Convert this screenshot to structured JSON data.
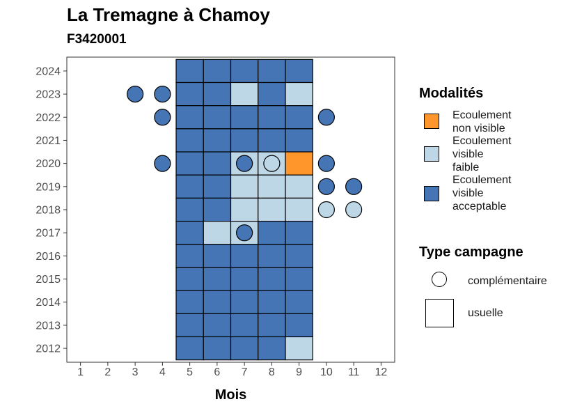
{
  "title": "La Tremagne à Chamoy",
  "subtitle": "F3420001",
  "colors": {
    "Ecoulement non visible": "#FE962B",
    "Ecoulement visible faible": "#BDD7E7",
    "Ecoulement visible acceptable": "#4575B4"
  },
  "legend": {
    "modalites_title": "Modalités",
    "modalites": [
      {
        "label": "Ecoulement\nnon visible",
        "key": "Ecoulement non visible"
      },
      {
        "label": "Ecoulement\nvisible\nfaible",
        "key": "Ecoulement visible faible"
      },
      {
        "label": "Ecoulement\nvisible\nacceptable",
        "key": "Ecoulement visible acceptable"
      }
    ],
    "type_title": "Type campagne",
    "types": [
      {
        "label": "complémentaire",
        "shape": "circle"
      },
      {
        "label": "usuelle",
        "shape": "square"
      }
    ]
  },
  "chart_data": {
    "type": "heatmap",
    "xlabel": "Mois",
    "ylabel": "",
    "x_ticks": [
      1,
      2,
      3,
      4,
      5,
      6,
      7,
      8,
      9,
      10,
      11,
      12
    ],
    "y_ticks": [
      2012,
      2013,
      2014,
      2015,
      2016,
      2017,
      2018,
      2019,
      2020,
      2021,
      2022,
      2023,
      2024
    ],
    "xlim": [
      0.5,
      12.5
    ],
    "ylim": [
      2011.4,
      2024.6
    ],
    "grid": false,
    "usuelle": [
      {
        "year": 2024,
        "months": [
          5,
          6,
          7,
          8,
          9
        ],
        "values": [
          "A",
          "A",
          "A",
          "A",
          "A"
        ]
      },
      {
        "year": 2023,
        "months": [
          5,
          6,
          7,
          8,
          9
        ],
        "values": [
          "A",
          "A",
          "F",
          "A",
          "F"
        ]
      },
      {
        "year": 2022,
        "months": [
          5,
          6,
          7,
          8,
          9
        ],
        "values": [
          "A",
          "A",
          "A",
          "A",
          "A"
        ]
      },
      {
        "year": 2021,
        "months": [
          5,
          6,
          7,
          8,
          9
        ],
        "values": [
          "A",
          "A",
          "A",
          "A",
          "A"
        ]
      },
      {
        "year": 2020,
        "months": [
          5,
          6,
          7,
          8,
          9
        ],
        "values": [
          "A",
          "A",
          "F",
          "F",
          "N"
        ]
      },
      {
        "year": 2019,
        "months": [
          5,
          6,
          7,
          8,
          9
        ],
        "values": [
          "A",
          "A",
          "F",
          "F",
          "F"
        ]
      },
      {
        "year": 2018,
        "months": [
          5,
          6,
          7,
          8,
          9
        ],
        "values": [
          "A",
          "A",
          "F",
          "F",
          "F"
        ]
      },
      {
        "year": 2017,
        "months": [
          5,
          6,
          7,
          8,
          9
        ],
        "values": [
          "A",
          "F",
          "F",
          "A",
          "A"
        ]
      },
      {
        "year": 2016,
        "months": [
          5,
          6,
          7,
          8,
          9
        ],
        "values": [
          "A",
          "A",
          "A",
          "A",
          "A"
        ]
      },
      {
        "year": 2015,
        "months": [
          5,
          6,
          7,
          8,
          9
        ],
        "values": [
          "A",
          "A",
          "A",
          "A",
          "A"
        ]
      },
      {
        "year": 2014,
        "months": [
          5,
          6,
          7,
          8,
          9
        ],
        "values": [
          "A",
          "A",
          "A",
          "A",
          "A"
        ]
      },
      {
        "year": 2013,
        "months": [
          5,
          6,
          7,
          8,
          9
        ],
        "values": [
          "A",
          "A",
          "A",
          "A",
          "A"
        ]
      },
      {
        "year": 2012,
        "months": [
          5,
          6,
          7,
          8,
          9
        ],
        "values": [
          "A",
          "A",
          "A",
          "A",
          "F"
        ]
      }
    ],
    "complementaire": [
      {
        "month": 3,
        "year": 2023,
        "value": "A"
      },
      {
        "month": 4,
        "year": 2023,
        "value": "A"
      },
      {
        "month": 4,
        "year": 2022,
        "value": "A"
      },
      {
        "month": 10,
        "year": 2022,
        "value": "A"
      },
      {
        "month": 4,
        "year": 2020,
        "value": "A"
      },
      {
        "month": 7,
        "year": 2020,
        "value": "A"
      },
      {
        "month": 8,
        "year": 2020,
        "value": "F"
      },
      {
        "month": 10,
        "year": 2020,
        "value": "A"
      },
      {
        "month": 10,
        "year": 2019,
        "value": "A"
      },
      {
        "month": 11,
        "year": 2019,
        "value": "A"
      },
      {
        "month": 10,
        "year": 2018,
        "value": "F"
      },
      {
        "month": 11,
        "year": 2018,
        "value": "F"
      },
      {
        "month": 7,
        "year": 2017,
        "value": "A"
      }
    ],
    "value_codes": {
      "A": "Ecoulement visible acceptable",
      "F": "Ecoulement visible faible",
      "N": "Ecoulement non visible"
    }
  }
}
